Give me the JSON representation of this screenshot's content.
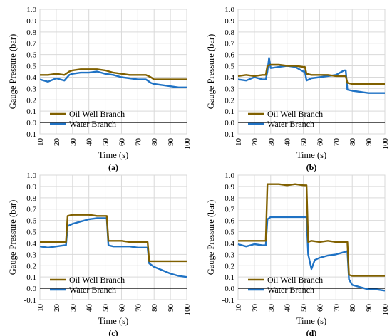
{
  "colors": {
    "oil": "#806000",
    "water": "#1f72c4",
    "grid": "#d9d9d9",
    "axis": "#000000"
  },
  "chart_data": [
    {
      "panel": "(a)",
      "type": "line",
      "xlabel": "Time (s)",
      "ylabel": "Gauge Pressure (bar)",
      "xlim": [
        10,
        100
      ],
      "ylim": [
        -0.1,
        1.0
      ],
      "xticks": [
        "10",
        "20",
        "30",
        "40",
        "50",
        "60",
        "70",
        "80",
        "90",
        "100"
      ],
      "yticks": [
        "-0.1",
        "0.0",
        "0.1",
        "0.2",
        "0.3",
        "0.4",
        "0.5",
        "0.6",
        "0.7",
        "0.8",
        "0.9",
        "1.0"
      ],
      "grid": true,
      "legend": "bottom-left",
      "series": [
        {
          "name": "Oil Well Branch",
          "x": [
            10,
            15,
            20,
            25,
            28,
            30,
            35,
            40,
            45,
            50,
            55,
            60,
            65,
            70,
            75,
            78,
            80,
            85,
            90,
            95,
            100
          ],
          "y": [
            0.42,
            0.42,
            0.43,
            0.42,
            0.45,
            0.46,
            0.47,
            0.47,
            0.47,
            0.46,
            0.44,
            0.43,
            0.42,
            0.42,
            0.42,
            0.4,
            0.38,
            0.38,
            0.38,
            0.38,
            0.38
          ]
        },
        {
          "name": "Water Branch",
          "x": [
            10,
            15,
            20,
            25,
            28,
            30,
            35,
            40,
            45,
            50,
            55,
            60,
            65,
            70,
            75,
            78,
            80,
            85,
            90,
            95,
            100
          ],
          "y": [
            0.38,
            0.36,
            0.39,
            0.37,
            0.42,
            0.43,
            0.44,
            0.44,
            0.45,
            0.43,
            0.42,
            0.4,
            0.39,
            0.38,
            0.38,
            0.35,
            0.34,
            0.33,
            0.32,
            0.31,
            0.31
          ]
        }
      ]
    },
    {
      "panel": "(b)",
      "type": "line",
      "xlabel": "Time (s)",
      "ylabel": "Gauge Pressure (bar)",
      "xlim": [
        10,
        100
      ],
      "ylim": [
        -0.1,
        1.0
      ],
      "xticks": [
        "10",
        "20",
        "30",
        "40",
        "50",
        "60",
        "70",
        "80",
        "90",
        "100"
      ],
      "yticks": [
        "-0.1",
        "0.0",
        "0.1",
        "0.2",
        "0.3",
        "0.4",
        "0.5",
        "0.6",
        "0.7",
        "0.8",
        "0.9",
        "1.0"
      ],
      "grid": true,
      "legend": "bottom-left",
      "series": [
        {
          "name": "Oil Well Branch",
          "x": [
            10,
            15,
            20,
            25,
            27,
            28,
            30,
            35,
            40,
            45,
            50,
            51,
            52,
            55,
            60,
            65,
            70,
            75,
            76,
            77,
            80,
            85,
            90,
            95,
            100
          ],
          "y": [
            0.41,
            0.42,
            0.41,
            0.42,
            0.42,
            0.5,
            0.51,
            0.51,
            0.5,
            0.5,
            0.49,
            0.49,
            0.43,
            0.42,
            0.42,
            0.42,
            0.41,
            0.41,
            0.41,
            0.35,
            0.34,
            0.34,
            0.34,
            0.34,
            0.34
          ]
        },
        {
          "name": "Water Branch",
          "x": [
            10,
            15,
            20,
            25,
            27,
            28,
            29,
            30,
            35,
            40,
            45,
            50,
            51,
            52,
            55,
            60,
            65,
            70,
            75,
            76,
            77,
            80,
            85,
            90,
            95,
            100
          ],
          "y": [
            0.38,
            0.37,
            0.4,
            0.38,
            0.38,
            0.45,
            0.57,
            0.48,
            0.49,
            0.5,
            0.49,
            0.45,
            0.45,
            0.37,
            0.39,
            0.4,
            0.41,
            0.42,
            0.46,
            0.46,
            0.29,
            0.28,
            0.27,
            0.26,
            0.26,
            0.26
          ]
        }
      ]
    },
    {
      "panel": "(c)",
      "type": "line",
      "xlabel": "Time (s)",
      "ylabel": "Gauge Pressure (bar)",
      "xlim": [
        10,
        100
      ],
      "ylim": [
        -0.1,
        1.0
      ],
      "xticks": [
        "10",
        "20",
        "30",
        "40",
        "50",
        "60",
        "70",
        "80",
        "90",
        "100"
      ],
      "yticks": [
        "-0.1",
        "0.0",
        "0.1",
        "0.2",
        "0.3",
        "0.4",
        "0.5",
        "0.6",
        "0.7",
        "0.8",
        "0.9",
        "1.0"
      ],
      "grid": true,
      "legend": "bottom-left",
      "series": [
        {
          "name": "Oil Well Branch",
          "x": [
            10,
            15,
            20,
            25,
            26,
            27,
            30,
            35,
            40,
            45,
            50,
            51,
            52,
            55,
            60,
            65,
            70,
            75,
            76,
            77,
            80,
            85,
            90,
            95,
            100
          ],
          "y": [
            0.41,
            0.41,
            0.41,
            0.41,
            0.41,
            0.64,
            0.65,
            0.65,
            0.65,
            0.64,
            0.64,
            0.64,
            0.42,
            0.42,
            0.42,
            0.41,
            0.41,
            0.41,
            0.41,
            0.24,
            0.24,
            0.24,
            0.24,
            0.24,
            0.24
          ]
        },
        {
          "name": "Water Branch",
          "x": [
            10,
            15,
            20,
            25,
            26,
            27,
            30,
            35,
            40,
            45,
            50,
            51,
            52,
            55,
            60,
            65,
            70,
            75,
            76,
            77,
            80,
            85,
            90,
            95,
            100
          ],
          "y": [
            0.37,
            0.36,
            0.37,
            0.38,
            0.38,
            0.55,
            0.57,
            0.59,
            0.61,
            0.62,
            0.62,
            0.62,
            0.38,
            0.37,
            0.37,
            0.37,
            0.36,
            0.36,
            0.36,
            0.22,
            0.19,
            0.16,
            0.13,
            0.11,
            0.1
          ]
        }
      ]
    },
    {
      "panel": "(d)",
      "type": "line",
      "xlabel": "Time (s)",
      "ylabel": "Gauge Pressure (bar)",
      "xlim": [
        10,
        100
      ],
      "ylim": [
        -0.1,
        1.0
      ],
      "xticks": [
        "10",
        "20",
        "30",
        "40",
        "50",
        "60",
        "70",
        "80",
        "90",
        "100"
      ],
      "yticks": [
        "-0.1",
        "0.0",
        "0.1",
        "0.2",
        "0.3",
        "0.4",
        "0.5",
        "0.6",
        "0.7",
        "0.8",
        "0.9",
        "1.0"
      ],
      "grid": true,
      "legend": "bottom-left",
      "series": [
        {
          "name": "Oil Well Branch",
          "x": [
            10,
            15,
            20,
            25,
            27,
            28,
            30,
            35,
            40,
            45,
            50,
            52,
            53,
            55,
            60,
            65,
            70,
            75,
            77,
            78,
            80,
            85,
            90,
            95,
            100
          ],
          "y": [
            0.42,
            0.42,
            0.42,
            0.42,
            0.42,
            0.92,
            0.92,
            0.92,
            0.91,
            0.92,
            0.91,
            0.91,
            0.41,
            0.42,
            0.41,
            0.42,
            0.41,
            0.41,
            0.41,
            0.12,
            0.11,
            0.11,
            0.11,
            0.11,
            0.11
          ]
        },
        {
          "name": "Water Branch",
          "x": [
            10,
            15,
            20,
            25,
            27,
            28,
            30,
            35,
            40,
            45,
            50,
            52,
            53,
            55,
            57,
            60,
            65,
            70,
            75,
            77,
            78,
            80,
            85,
            90,
            95,
            100
          ],
          "y": [
            0.39,
            0.37,
            0.39,
            0.38,
            0.38,
            0.61,
            0.63,
            0.63,
            0.63,
            0.63,
            0.63,
            0.63,
            0.3,
            0.17,
            0.25,
            0.27,
            0.29,
            0.3,
            0.32,
            0.33,
            0.08,
            0.03,
            0.01,
            -0.01,
            -0.01,
            -0.02
          ]
        }
      ]
    }
  ]
}
